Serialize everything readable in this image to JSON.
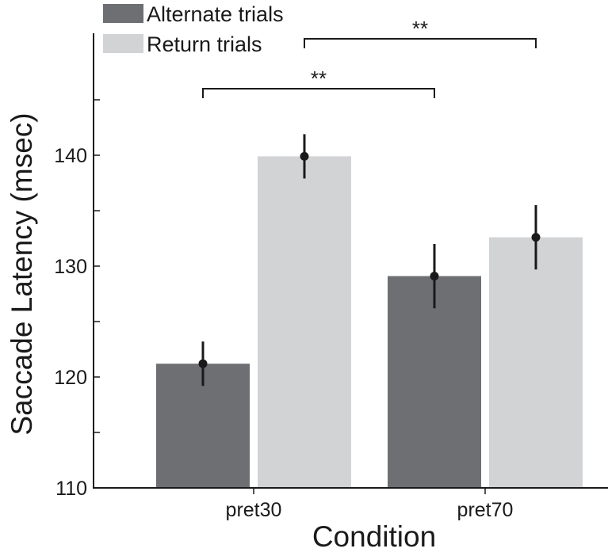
{
  "chart_data": {
    "type": "bar",
    "categories": [
      "pret30",
      "pret70"
    ],
    "series": [
      {
        "name": "Alternate trials",
        "color": "#6e6f72",
        "values": [
          121.2,
          129.1
        ],
        "errors": [
          2.0,
          2.9
        ]
      },
      {
        "name": "Return trials",
        "color": "#d2d3d5",
        "values": [
          139.9,
          132.6
        ],
        "errors": [
          2.0,
          2.9
        ]
      }
    ],
    "xlabel": "Condition",
    "ylabel": "Saccade Latency (msec)",
    "ylim": [
      110,
      150
    ],
    "yticks": [
      110,
      120,
      130,
      140
    ],
    "yticks_unlabeled": [
      115,
      125,
      135,
      145
    ],
    "legend": [
      "Alternate trials",
      "Return trials"
    ],
    "legend_position": "top-left",
    "grid": false,
    "significance": [
      {
        "label": "**",
        "from": {
          "category": "pret30",
          "series": "Alternate trials"
        },
        "to": {
          "category": "pret70",
          "series": "Alternate trials"
        },
        "y": 146
      },
      {
        "label": "**",
        "from": {
          "category": "pret30",
          "series": "Return trials"
        },
        "to": {
          "category": "pret70",
          "series": "Return trials"
        },
        "y": 150.5
      }
    ]
  }
}
